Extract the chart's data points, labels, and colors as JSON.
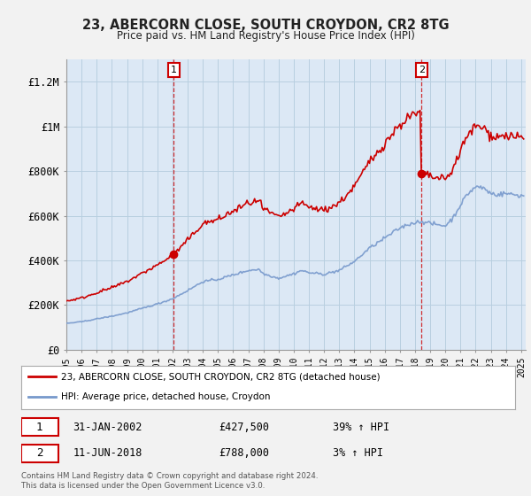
{
  "title": "23, ABERCORN CLOSE, SOUTH CROYDON, CR2 8TG",
  "subtitle": "Price paid vs. HM Land Registry's House Price Index (HPI)",
  "legend_label_red": "23, ABERCORN CLOSE, SOUTH CROYDON, CR2 8TG (detached house)",
  "legend_label_blue": "HPI: Average price, detached house, Croydon",
  "annotation1_date": "31-JAN-2002",
  "annotation1_price": "£427,500",
  "annotation1_hpi": "39% ↑ HPI",
  "annotation2_date": "11-JUN-2018",
  "annotation2_price": "£788,000",
  "annotation2_hpi": "3% ↑ HPI",
  "footer": "Contains HM Land Registry data © Crown copyright and database right 2024.\nThis data is licensed under the Open Government Licence v3.0.",
  "red_color": "#cc0000",
  "blue_color": "#7799cc",
  "plot_bg_color": "#dce8f5",
  "background_color": "#f0f0f0",
  "grid_color": "#b8cfe0",
  "ylim": [
    0,
    1300000
  ],
  "yticks": [
    0,
    200000,
    400000,
    600000,
    800000,
    1000000,
    1200000
  ],
  "ytick_labels": [
    "£0",
    "£200K",
    "£400K",
    "£600K",
    "£800K",
    "£1M",
    "£1.2M"
  ],
  "purchase1_year": 2002.083,
  "purchase1_price": 427500,
  "purchase2_year": 2018.44,
  "purchase2_price": 788000
}
